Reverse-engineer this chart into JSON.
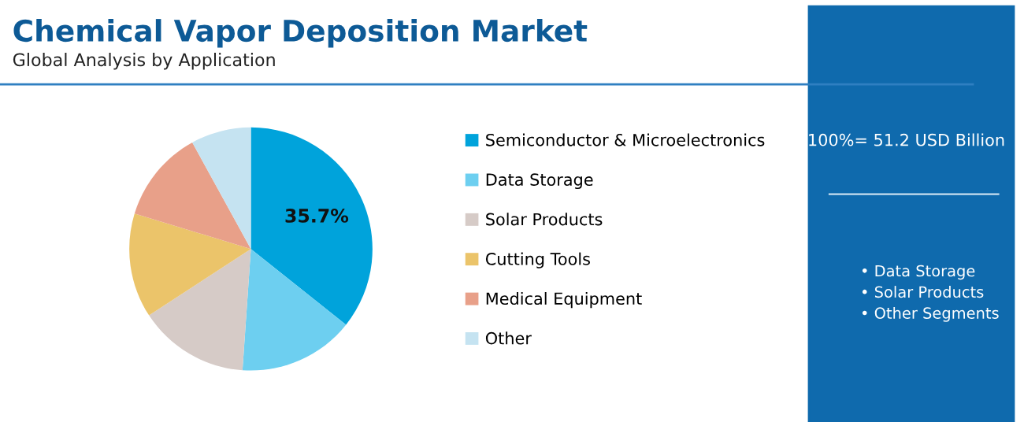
{
  "chart_data": {
    "type": "pie",
    "title": "Chemical Vapor Deposition Market",
    "subtitle": "Global Analysis by Application",
    "categories": [
      "Semiconductor & Microelectronics",
      "Data Storage",
      "Solar Products",
      "Cutting Tools",
      "Medical Equipment",
      "Other"
    ],
    "values": [
      35.7,
      15.4,
      14.7,
      13.9,
      12.3,
      8.0
    ],
    "colors": [
      "#00a3db",
      "#6dcff0",
      "#d6cbc7",
      "#ebc46a",
      "#e8a089",
      "#c5e3f1"
    ],
    "value_labels": [
      "35.7%",
      null,
      null,
      null,
      null,
      null
    ],
    "legend": "right",
    "annotations": [
      "100%= 51.2 USD Billion",
      "• Data Storage",
      "• Solar Products",
      "• Other Segments"
    ]
  }
}
